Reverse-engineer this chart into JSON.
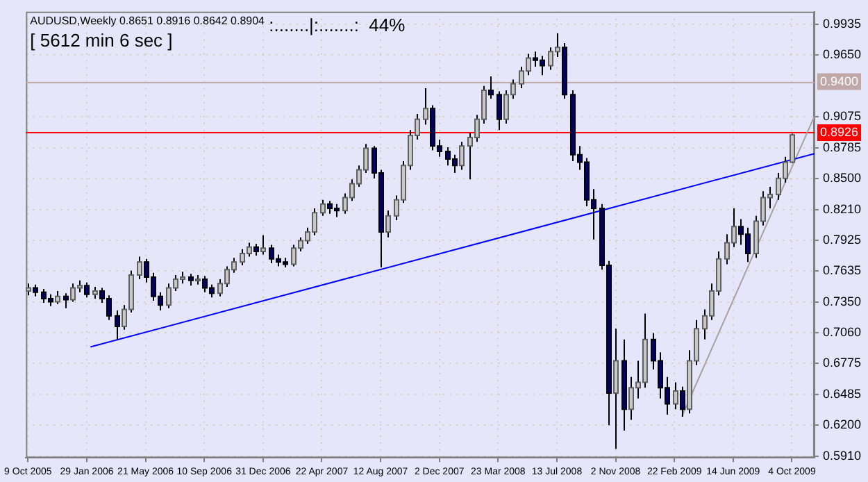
{
  "chart_data": {
    "type": "candlestick",
    "title": "AUDUSD,Weekly 0.8651 0.8916 0.8642 0.8904",
    "annotations": [
      "[ 5612 min 6 sec ]",
      ":.......|:.......:  44%"
    ],
    "x": [
      "2005-10-09",
      "2005-10-23",
      "2005-11-06",
      "2005-11-20",
      "2005-12-04",
      "2005-12-18",
      "2006-01-01",
      "2006-01-15",
      "2006-01-29",
      "2006-02-12",
      "2006-02-26",
      "2006-03-12",
      "2006-03-26",
      "2006-04-09",
      "2006-04-23",
      "2006-05-07",
      "2006-05-21",
      "2006-06-04",
      "2006-06-18",
      "2006-07-02",
      "2006-07-16",
      "2006-07-30",
      "2006-08-13",
      "2006-08-27",
      "2006-09-10",
      "2006-09-24",
      "2006-10-08",
      "2006-10-22",
      "2006-11-05",
      "2006-11-19",
      "2006-12-03",
      "2006-12-17",
      "2006-12-31",
      "2007-01-14",
      "2007-01-28",
      "2007-02-11",
      "2007-02-25",
      "2007-03-11",
      "2007-03-25",
      "2007-04-08",
      "2007-04-22",
      "2007-05-06",
      "2007-05-20",
      "2007-06-03",
      "2007-06-17",
      "2007-07-01",
      "2007-07-15",
      "2007-07-29",
      "2007-08-12",
      "2007-08-26",
      "2007-09-09",
      "2007-09-23",
      "2007-10-07",
      "2007-10-21",
      "2007-11-04",
      "2007-11-18",
      "2007-12-02",
      "2007-12-16",
      "2007-12-30",
      "2008-01-13",
      "2008-01-27",
      "2008-02-10",
      "2008-02-24",
      "2008-03-09",
      "2008-03-23",
      "2008-04-06",
      "2008-04-20",
      "2008-05-04",
      "2008-05-18",
      "2008-06-01",
      "2008-06-15",
      "2008-06-29",
      "2008-07-13",
      "2008-07-27",
      "2008-08-10",
      "2008-08-24",
      "2008-09-07",
      "2008-09-21",
      "2008-10-05",
      "2008-10-19",
      "2008-11-02",
      "2008-11-16",
      "2008-11-30",
      "2008-12-14",
      "2008-12-28",
      "2009-01-11",
      "2009-01-25",
      "2009-02-08",
      "2009-02-22",
      "2009-03-08",
      "2009-03-22",
      "2009-04-05",
      "2009-04-19",
      "2009-05-03",
      "2009-05-17",
      "2009-05-31",
      "2009-06-14",
      "2009-06-28",
      "2009-07-12",
      "2009-07-26",
      "2009-08-09",
      "2009-08-23",
      "2009-09-06",
      "2009-09-20",
      "2009-10-04"
    ],
    "ohlc": [
      [
        0.745,
        0.752,
        0.741,
        0.748
      ],
      [
        0.748,
        0.751,
        0.74,
        0.744
      ],
      [
        0.744,
        0.747,
        0.734,
        0.738
      ],
      [
        0.738,
        0.742,
        0.731,
        0.735
      ],
      [
        0.735,
        0.745,
        0.733,
        0.74
      ],
      [
        0.74,
        0.743,
        0.729,
        0.737
      ],
      [
        0.737,
        0.752,
        0.735,
        0.748
      ],
      [
        0.748,
        0.755,
        0.744,
        0.75
      ],
      [
        0.75,
        0.753,
        0.739,
        0.742
      ],
      [
        0.742,
        0.749,
        0.738,
        0.745
      ],
      [
        0.745,
        0.748,
        0.734,
        0.738
      ],
      [
        0.738,
        0.741,
        0.718,
        0.722
      ],
      [
        0.722,
        0.727,
        0.7,
        0.712
      ],
      [
        0.712,
        0.732,
        0.709,
        0.728
      ],
      [
        0.728,
        0.764,
        0.725,
        0.76
      ],
      [
        0.76,
        0.777,
        0.756,
        0.772
      ],
      [
        0.772,
        0.775,
        0.753,
        0.758
      ],
      [
        0.758,
        0.762,
        0.736,
        0.74
      ],
      [
        0.74,
        0.744,
        0.727,
        0.732
      ],
      [
        0.732,
        0.752,
        0.729,
        0.748
      ],
      [
        0.748,
        0.76,
        0.745,
        0.756
      ],
      [
        0.756,
        0.763,
        0.752,
        0.758
      ],
      [
        0.758,
        0.761,
        0.75,
        0.755
      ],
      [
        0.755,
        0.76,
        0.751,
        0.756
      ],
      [
        0.756,
        0.759,
        0.744,
        0.748
      ],
      [
        0.748,
        0.751,
        0.739,
        0.743
      ],
      [
        0.743,
        0.756,
        0.74,
        0.752
      ],
      [
        0.752,
        0.768,
        0.749,
        0.765
      ],
      [
        0.765,
        0.776,
        0.762,
        0.772
      ],
      [
        0.772,
        0.784,
        0.769,
        0.78
      ],
      [
        0.78,
        0.79,
        0.777,
        0.786
      ],
      [
        0.786,
        0.789,
        0.778,
        0.782
      ],
      [
        0.782,
        0.797,
        0.779,
        0.785
      ],
      [
        0.785,
        0.788,
        0.771,
        0.775
      ],
      [
        0.775,
        0.779,
        0.768,
        0.772
      ],
      [
        0.772,
        0.776,
        0.767,
        0.77
      ],
      [
        0.77,
        0.788,
        0.768,
        0.785
      ],
      [
        0.785,
        0.795,
        0.782,
        0.792
      ],
      [
        0.792,
        0.804,
        0.789,
        0.8
      ],
      [
        0.8,
        0.822,
        0.797,
        0.818
      ],
      [
        0.818,
        0.83,
        0.815,
        0.826
      ],
      [
        0.826,
        0.829,
        0.817,
        0.822
      ],
      [
        0.822,
        0.826,
        0.814,
        0.82
      ],
      [
        0.82,
        0.836,
        0.817,
        0.832
      ],
      [
        0.832,
        0.849,
        0.829,
        0.845
      ],
      [
        0.845,
        0.862,
        0.842,
        0.858
      ],
      [
        0.858,
        0.882,
        0.855,
        0.878
      ],
      [
        0.878,
        0.88,
        0.85,
        0.855
      ],
      [
        0.855,
        0.858,
        0.767,
        0.8
      ],
      [
        0.8,
        0.82,
        0.795,
        0.815
      ],
      [
        0.815,
        0.834,
        0.811,
        0.83
      ],
      [
        0.83,
        0.866,
        0.827,
        0.862
      ],
      [
        0.862,
        0.895,
        0.858,
        0.89
      ],
      [
        0.89,
        0.91,
        0.886,
        0.905
      ],
      [
        0.905,
        0.934,
        0.9,
        0.915
      ],
      [
        0.915,
        0.918,
        0.876,
        0.88
      ],
      [
        0.88,
        0.886,
        0.87,
        0.875
      ],
      [
        0.875,
        0.879,
        0.862,
        0.868
      ],
      [
        0.868,
        0.872,
        0.855,
        0.862
      ],
      [
        0.862,
        0.884,
        0.858,
        0.88
      ],
      [
        0.88,
        0.892,
        0.849,
        0.888
      ],
      [
        0.888,
        0.909,
        0.884,
        0.905
      ],
      [
        0.905,
        0.936,
        0.901,
        0.932
      ],
      [
        0.932,
        0.945,
        0.924,
        0.928
      ],
      [
        0.928,
        0.931,
        0.895,
        0.905
      ],
      [
        0.905,
        0.932,
        0.901,
        0.928
      ],
      [
        0.928,
        0.942,
        0.924,
        0.938
      ],
      [
        0.938,
        0.954,
        0.934,
        0.95
      ],
      [
        0.95,
        0.966,
        0.946,
        0.962
      ],
      [
        0.962,
        0.968,
        0.954,
        0.96
      ],
      [
        0.96,
        0.964,
        0.946,
        0.955
      ],
      [
        0.955,
        0.972,
        0.951,
        0.968
      ],
      [
        0.968,
        0.985,
        0.963,
        0.972
      ],
      [
        0.972,
        0.976,
        0.924,
        0.928
      ],
      [
        0.928,
        0.932,
        0.866,
        0.872
      ],
      [
        0.872,
        0.88,
        0.858,
        0.865
      ],
      [
        0.865,
        0.869,
        0.824,
        0.83
      ],
      [
        0.83,
        0.84,
        0.793,
        0.822
      ],
      [
        0.822,
        0.826,
        0.765,
        0.769
      ],
      [
        0.769,
        0.773,
        0.62,
        0.65
      ],
      [
        0.65,
        0.71,
        0.598,
        0.68
      ],
      [
        0.68,
        0.7,
        0.615,
        0.635
      ],
      [
        0.635,
        0.665,
        0.625,
        0.655
      ],
      [
        0.655,
        0.68,
        0.645,
        0.66
      ],
      [
        0.66,
        0.724,
        0.655,
        0.7
      ],
      [
        0.7,
        0.706,
        0.672,
        0.68
      ],
      [
        0.68,
        0.688,
        0.645,
        0.655
      ],
      [
        0.655,
        0.665,
        0.63,
        0.64
      ],
      [
        0.64,
        0.66,
        0.635,
        0.652
      ],
      [
        0.652,
        0.656,
        0.628,
        0.635
      ],
      [
        0.635,
        0.69,
        0.631,
        0.68
      ],
      [
        0.68,
        0.718,
        0.676,
        0.71
      ],
      [
        0.71,
        0.728,
        0.7,
        0.722
      ],
      [
        0.722,
        0.752,
        0.718,
        0.745
      ],
      [
        0.745,
        0.782,
        0.741,
        0.775
      ],
      [
        0.775,
        0.798,
        0.77,
        0.79
      ],
      [
        0.79,
        0.822,
        0.786,
        0.805
      ],
      [
        0.805,
        0.812,
        0.788,
        0.798
      ],
      [
        0.798,
        0.804,
        0.772,
        0.78
      ],
      [
        0.78,
        0.815,
        0.776,
        0.81
      ],
      [
        0.81,
        0.838,
        0.806,
        0.832
      ],
      [
        0.832,
        0.842,
        0.822,
        0.835
      ],
      [
        0.835,
        0.855,
        0.83,
        0.85
      ],
      [
        0.85,
        0.87,
        0.846,
        0.8651
      ],
      [
        0.8651,
        0.8916,
        0.8642,
        0.8904
      ]
    ],
    "series": [
      {
        "type": "line",
        "color": "#0000ff",
        "x": [
          "2006-02-05",
          "2009-11-16"
        ],
        "values": [
          0.693,
          0.873
        ]
      },
      {
        "type": "line",
        "color": "#a8a0a0",
        "x": [
          "2009-03-08",
          "2009-11-16"
        ],
        "values": [
          0.628,
          0.908
        ]
      }
    ],
    "ref_lines": [
      {
        "axis": "y",
        "value": 0.94,
        "label": "0.9400",
        "color": "#c0a8a8"
      },
      {
        "axis": "y",
        "value": 0.8926,
        "label": "0.8926",
        "color": "#ff0000"
      }
    ],
    "xlim": [
      "2005-10-05",
      "2009-11-16"
    ],
    "xticks": [
      {
        "value": "2005-10-09",
        "label": "9 Oct 2005"
      },
      {
        "value": "2006-01-29",
        "label": "29 Jan 2006"
      },
      {
        "value": "2006-05-21",
        "label": "21 May 2006"
      },
      {
        "value": "2006-09-10",
        "label": "10 Sep 2006"
      },
      {
        "value": "2006-12-31",
        "label": "31 Dec 2006"
      },
      {
        "value": "2007-04-22",
        "label": "22 Apr 2007"
      },
      {
        "value": "2007-08-12",
        "label": "12 Aug 2007"
      },
      {
        "value": "2007-12-02",
        "label": "2 Dec 2007"
      },
      {
        "value": "2008-03-23",
        "label": "23 Mar 2008"
      },
      {
        "value": "2008-07-13",
        "label": "13 Jul 2008"
      },
      {
        "value": "2008-11-02",
        "label": "2 Nov 2008"
      },
      {
        "value": "2009-02-22",
        "label": "22 Feb 2009"
      },
      {
        "value": "2009-06-14",
        "label": "14 Jun 2009"
      },
      {
        "value": "2009-10-04",
        "label": "4 Oct 2009"
      }
    ],
    "ylim": [
      0.5897,
      1.0052
    ],
    "yticks": [
      0.9935,
      {
        "value": 0.965,
        "label": "0.9650"
      },
      0.9075,
      0.8785,
      {
        "value": 0.85,
        "label": "0.8500"
      },
      {
        "value": 0.821,
        "label": "0.8210"
      },
      0.7925,
      0.7635,
      {
        "value": 0.735,
        "label": "0.7350"
      },
      {
        "value": 0.706,
        "label": "0.7060"
      },
      0.6775,
      0.6485,
      {
        "value": 0.62,
        "label": "0.6200"
      },
      {
        "value": 0.591,
        "label": "0.5910"
      }
    ],
    "grid": true
  }
}
